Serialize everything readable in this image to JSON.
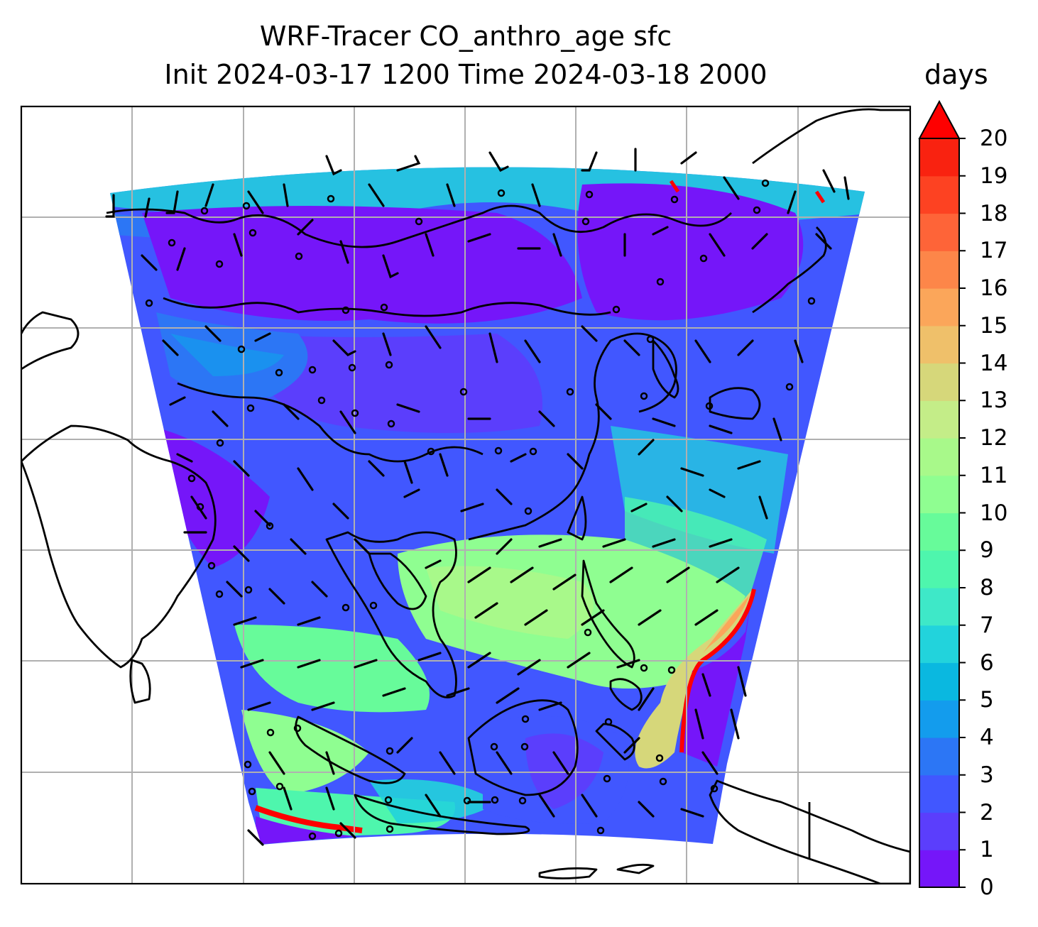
{
  "title": {
    "line1": "WRF-Tracer CO_anthro_age sfc",
    "line2": "Init 2024-03-17 1200 Time 2024-03-18 2000"
  },
  "colorbar": {
    "unit": "days",
    "min": 0,
    "max": 20,
    "extend": "max",
    "tick_labels": [
      "0",
      "1",
      "2",
      "3",
      "4",
      "5",
      "6",
      "7",
      "8",
      "9",
      "10",
      "11",
      "12",
      "13",
      "14",
      "15",
      "16",
      "17",
      "18",
      "19",
      "20"
    ],
    "colors": [
      "#7516f9",
      "#5b3efc",
      "#4157ff",
      "#2c76f5",
      "#139ced",
      "#0ab8e0",
      "#22d3dc",
      "#3ee8c8",
      "#4ef6ad",
      "#67fb9a",
      "#8ffe91",
      "#a8f98a",
      "#c4ed88",
      "#d6d77a",
      "#efc06a",
      "#fba65a",
      "#fd8649",
      "#fe6438",
      "#fd4222",
      "#f92210",
      "#fe0000"
    ]
  },
  "map": {
    "projection": "lambert-conformal",
    "features": [
      "coastlines",
      "country-borders",
      "wind-barbs",
      "gridlines"
    ],
    "field": "CO_anthro_age",
    "level": "sfc"
  }
}
